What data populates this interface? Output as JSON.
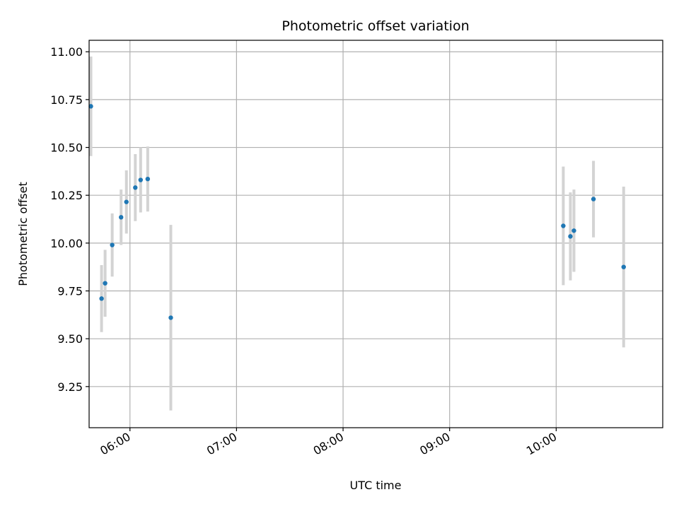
{
  "chart_data": {
    "type": "scatter",
    "title": "Photometric offset variation",
    "xlabel": "UTC time",
    "ylabel": "Photometric offset",
    "x_ticks": [
      "06:00",
      "07:00",
      "08:00",
      "09:00",
      "10:00"
    ],
    "y_ticks": [
      "9.25",
      "9.50",
      "9.75",
      "10.00",
      "10.25",
      "10.50",
      "10.75",
      "11.00"
    ],
    "xlim": [
      "05:37",
      "11:00"
    ],
    "ylim": [
      9.035,
      11.06
    ],
    "grid": true,
    "colors": {
      "point": "#1f77b4",
      "errorbar": "#d3d3d3",
      "grid": "#b0b0b0"
    },
    "points": [
      {
        "x": "05:38",
        "y": 10.715,
        "err": 0.26
      },
      {
        "x": "05:44",
        "y": 9.71,
        "err": 0.175
      },
      {
        "x": "05:46",
        "y": 9.79,
        "err": 0.175
      },
      {
        "x": "05:50",
        "y": 9.99,
        "err": 0.165
      },
      {
        "x": "05:55",
        "y": 10.135,
        "err": 0.145
      },
      {
        "x": "05:58",
        "y": 10.215,
        "err": 0.165
      },
      {
        "x": "06:03",
        "y": 10.29,
        "err": 0.175
      },
      {
        "x": "06:06",
        "y": 10.33,
        "err": 0.17
      },
      {
        "x": "06:10",
        "y": 10.335,
        "err": 0.17
      },
      {
        "x": "06:23",
        "y": 9.61,
        "err": 0.485
      },
      {
        "x": "10:04",
        "y": 10.09,
        "err": 0.31
      },
      {
        "x": "10:08",
        "y": 10.035,
        "err": 0.23
      },
      {
        "x": "10:10",
        "y": 10.065,
        "err": 0.215
      },
      {
        "x": "10:21",
        "y": 10.23,
        "err": 0.2
      },
      {
        "x": "10:38",
        "y": 9.875,
        "err": 0.42
      }
    ]
  }
}
